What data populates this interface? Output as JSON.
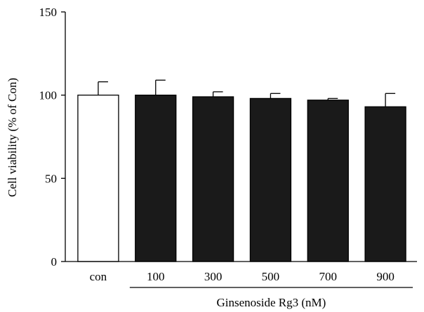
{
  "chart_data": {
    "type": "bar",
    "title": "",
    "xlabel": "",
    "ylabel": "Cell viability (% of Con)",
    "ylim": [
      0,
      150
    ],
    "yticks": [
      0,
      50,
      100,
      150
    ],
    "categories": [
      "con",
      "100",
      "300",
      "500",
      "700",
      "900"
    ],
    "series": [
      {
        "values": [
          100,
          100,
          99,
          98,
          97,
          93
        ],
        "errors": [
          8,
          9,
          3,
          3,
          1,
          8
        ],
        "fills": [
          "#ffffff",
          "#1a1a1a",
          "#1a1a1a",
          "#1a1a1a",
          "#1a1a1a",
          "#1a1a1a"
        ]
      }
    ],
    "group_label": {
      "text": "Ginsenoside Rg3 (nM)",
      "categories": [
        "100",
        "300",
        "500",
        "700",
        "900"
      ]
    },
    "grid": false,
    "legend": "none"
  }
}
